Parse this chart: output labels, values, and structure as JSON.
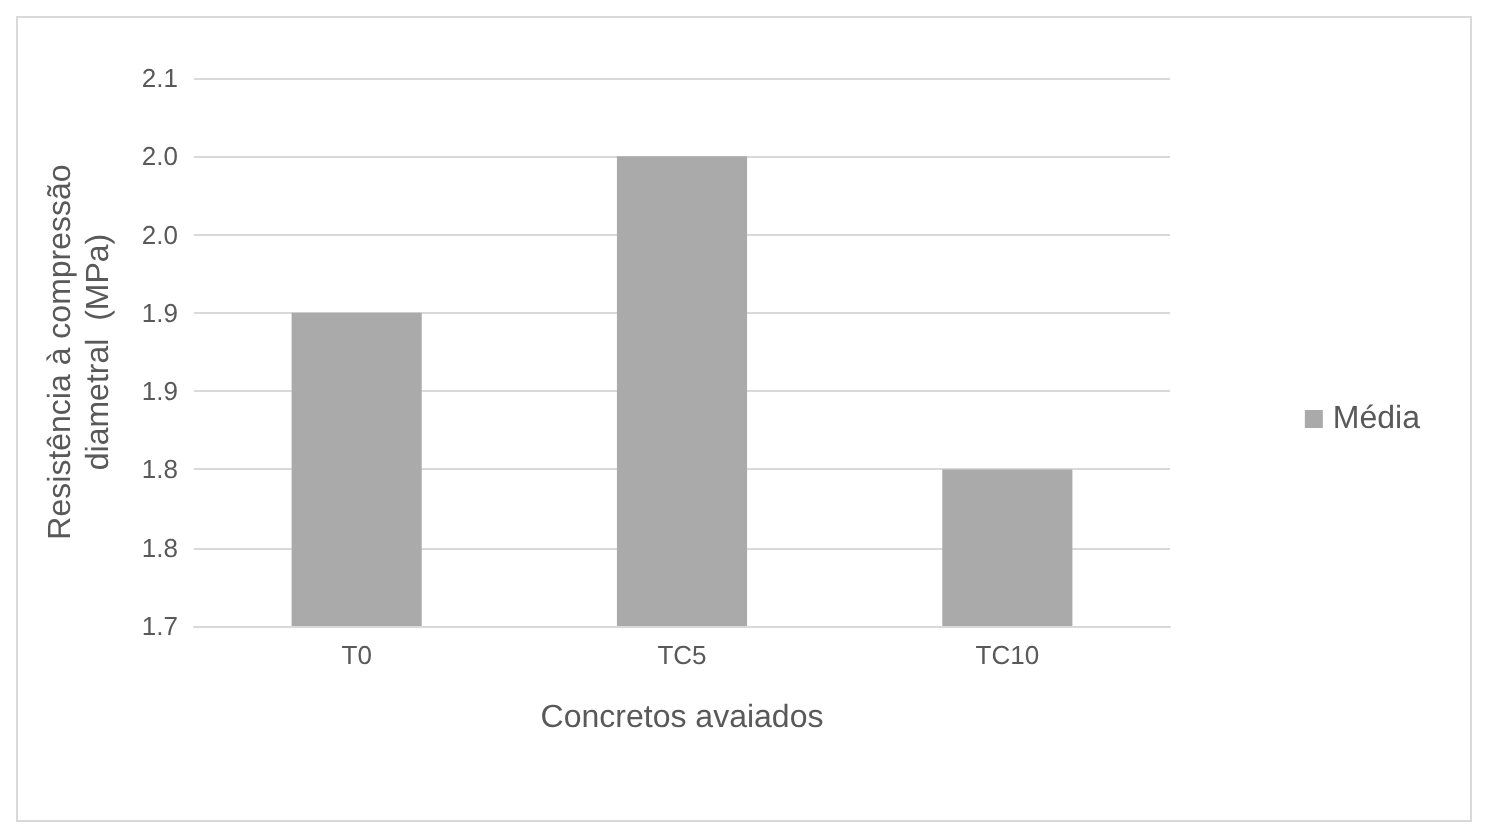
{
  "chart_data": {
    "type": "bar",
    "xlabel": "Concretos avaiados",
    "ylabel": "Resistência à compressão\ndiametral  (MPa)",
    "categories": [
      "T0",
      "TC5",
      "TC10"
    ],
    "series": [
      {
        "name": "Média",
        "color": "#aaaaaa",
        "values": [
          1.9,
          2.0,
          1.8
        ]
      }
    ],
    "ylim": [
      1.7,
      2.05
    ],
    "yticks": [
      {
        "value": 1.7,
        "label": "1.7"
      },
      {
        "value": 1.75,
        "label": "1.8"
      },
      {
        "value": 1.8,
        "label": "1.8"
      },
      {
        "value": 1.85,
        "label": "1.9"
      },
      {
        "value": 1.9,
        "label": "1.9"
      },
      {
        "value": 1.95,
        "label": "2.0"
      },
      {
        "value": 2.0,
        "label": "2.0"
      },
      {
        "value": 2.05,
        "label": "2.1"
      }
    ],
    "grid": "y",
    "legend": "right"
  }
}
